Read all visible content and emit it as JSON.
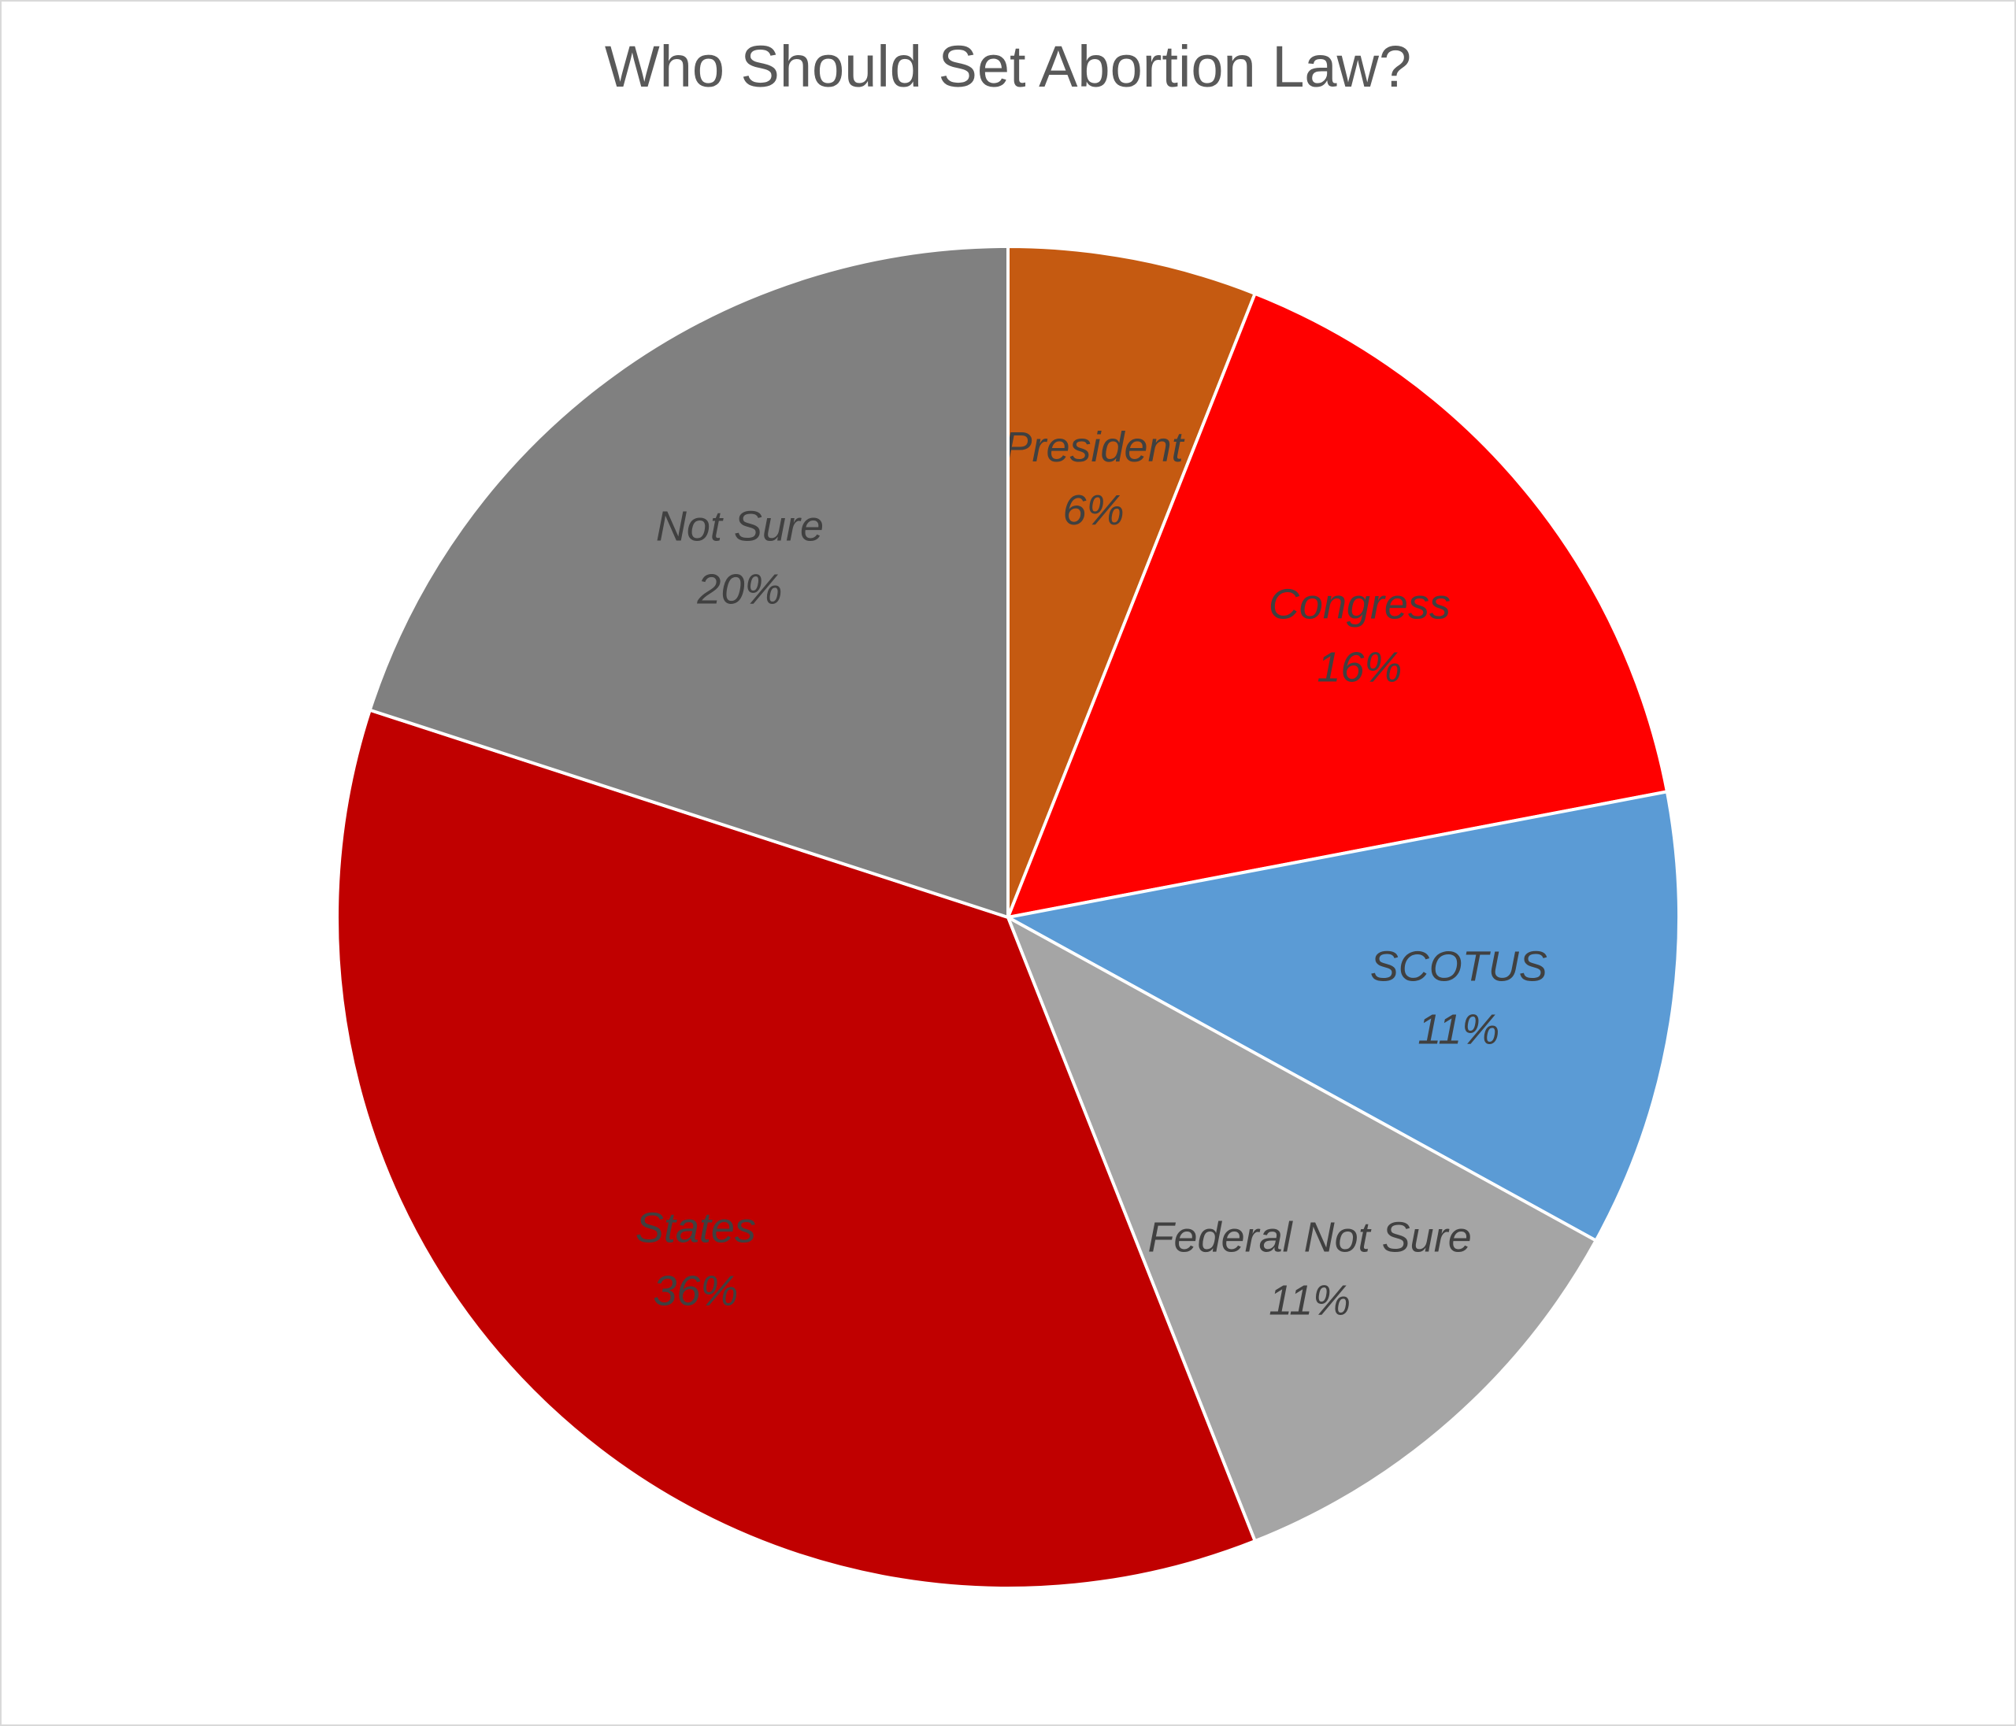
{
  "chart_data": {
    "type": "pie",
    "title": "Who Should Set Abortion Law?",
    "categories": [
      "President",
      "Congress",
      "SCOTUS",
      "Federal Not Sure",
      "States",
      "Not Sure"
    ],
    "values": [
      6,
      16,
      11,
      11,
      36,
      20
    ],
    "value_labels": [
      "6%",
      "16%",
      "11%",
      "11%",
      "36%",
      "20%"
    ],
    "colors": [
      "#c55a11",
      "#ff0000",
      "#5b9bd5",
      "#a5a5a5",
      "#c00000",
      "#808080"
    ],
    "start_angle": "12 o'clock",
    "direction": "clockwise",
    "legend": "none",
    "data_labels": "inside"
  }
}
